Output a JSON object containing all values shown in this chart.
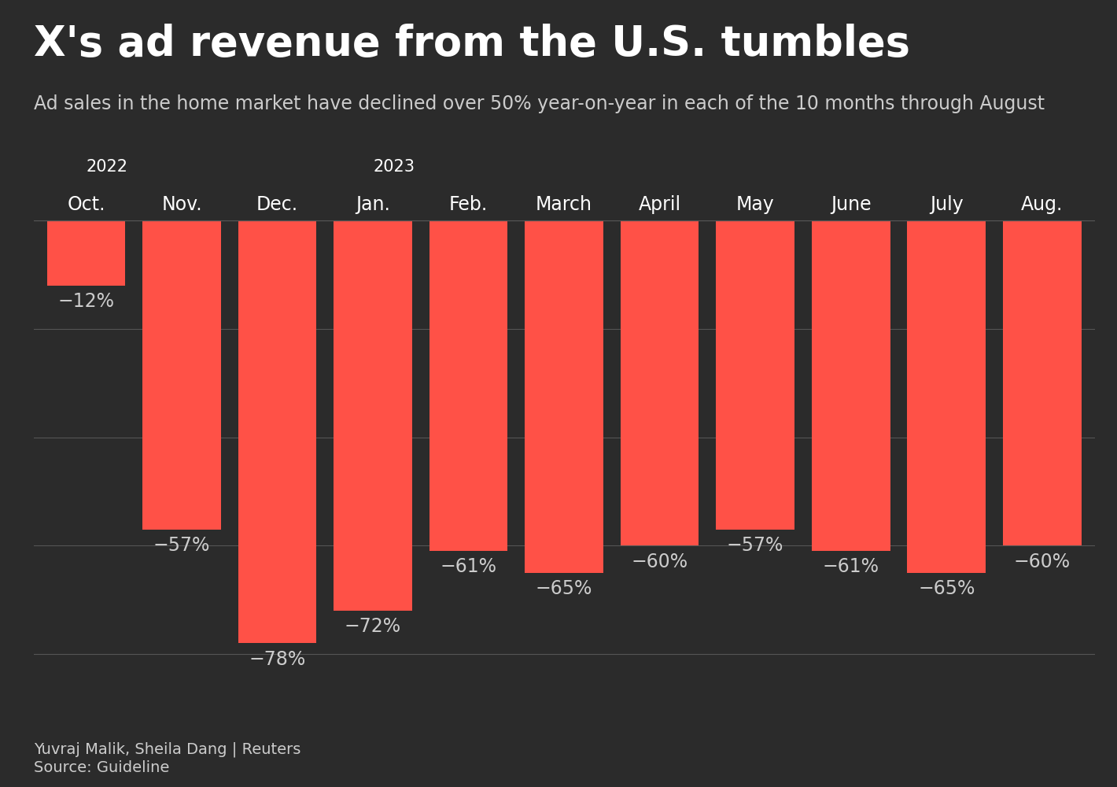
{
  "title": "X's ad revenue from the U.S. tumbles",
  "subtitle": "Ad sales in the home market have declined over 50% year-on-year in each of the 10 months through August",
  "categories": [
    "Oct.",
    "Nov.",
    "Dec.",
    "Jan.",
    "Feb.",
    "March",
    "April",
    "May",
    "June",
    "July",
    "Aug."
  ],
  "year_labels": [
    [
      "2022",
      0
    ],
    [
      "2023",
      3
    ]
  ],
  "values": [
    -12,
    -57,
    -78,
    -72,
    -61,
    -65,
    -60,
    -57,
    -61,
    -65,
    -60
  ],
  "bar_color": "#ff5147",
  "background_color": "#2b2b2b",
  "text_color": "#ffffff",
  "grid_color": "#555555",
  "label_color": "#cccccc",
  "footer_author": "Yuvraj Malik, Sheila Dang | Reuters",
  "footer_source": "Source: Guideline",
  "ylim": [
    -90,
    0
  ],
  "title_fontsize": 38,
  "subtitle_fontsize": 17,
  "tick_fontsize": 17,
  "year_fontsize": 15,
  "value_fontsize": 17,
  "footer_fontsize": 14
}
